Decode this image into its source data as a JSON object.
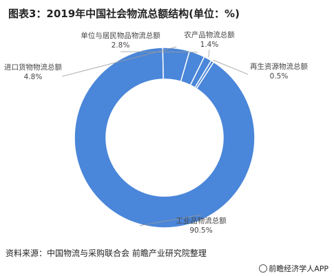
{
  "chart_data": {
    "type": "pie",
    "title": "图表3：2019年中国社会物流总额结构(单位：%)",
    "categories": [
      "工业品物流总额",
      "进口货物物流总额",
      "单位与居民物品物流总额",
      "农产品物流总额",
      "再生资源物流总额"
    ],
    "values": [
      90.5,
      4.8,
      2.8,
      1.4,
      0.5
    ],
    "value_labels": [
      "90.5%",
      "4.8%",
      "2.8%",
      "1.4%",
      "0.5%"
    ],
    "donut": true,
    "colors": [
      "#4a86d9",
      "#4a86d9",
      "#4a86d9",
      "#4a86d9",
      "#4a86d9"
    ]
  },
  "footer": {
    "source": "资料来源：中国物流与采购联合会 前瞻产业研究院整理",
    "brand": "前瞻经济学人APP"
  }
}
